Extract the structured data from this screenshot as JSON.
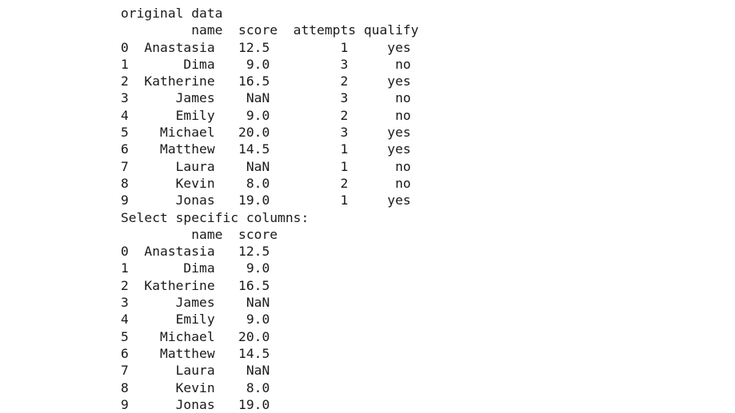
{
  "output_lines": [
    "original data",
    "         name  score  attempts qualify",
    "0  Anastasia   12.5         1     yes",
    "1       Dima    9.0         3      no",
    "2  Katherine   16.5         2     yes",
    "3      James    NaN         3      no",
    "4      Emily    9.0         2      no",
    "5    Michael   20.0         3     yes",
    "6    Matthew   14.5         1     yes",
    "7      Laura    NaN         1      no",
    "8      Kevin    8.0         2      no",
    "9      Jonas   19.0         1     yes",
    "Select specific columns:",
    "         name  score",
    "0  Anastasia   12.5",
    "1       Dima    9.0",
    "2  Katherine   16.5",
    "3      James    NaN",
    "4      Emily    9.0",
    "5    Michael   20.0",
    "6    Matthew   14.5",
    "7      Laura    NaN",
    "8      Kevin    8.0",
    "9      Jonas   19.0"
  ]
}
